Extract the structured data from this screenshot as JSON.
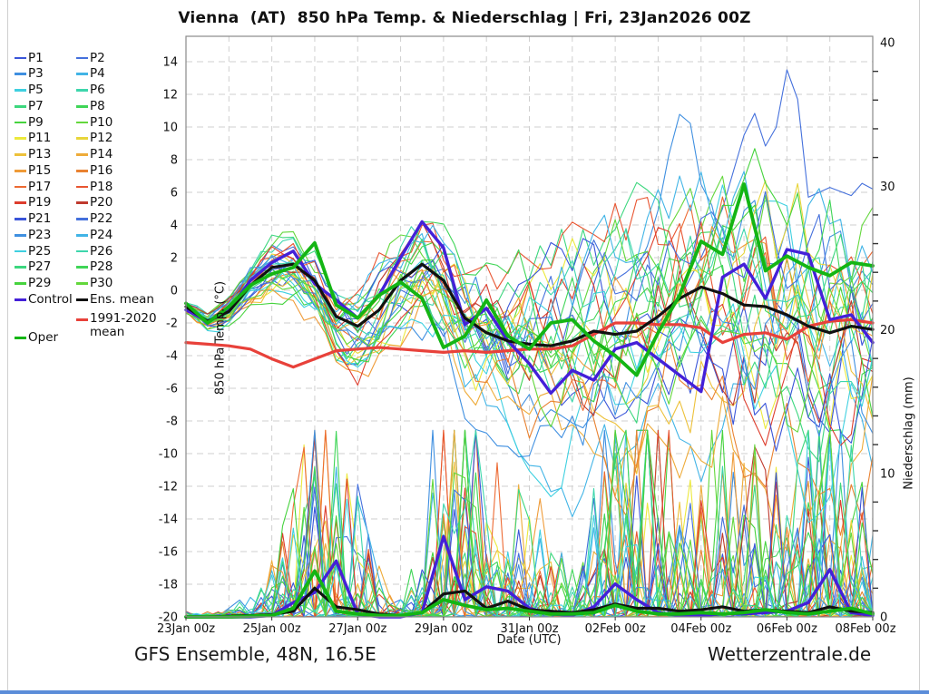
{
  "title": "Vienna  (AT)  850 hPa Temp. & Niederschlag | Fri, 23Jan2026 00Z",
  "footer": {
    "left": "GFS Ensemble, 48N, 16.5E",
    "right": "Wetterzentrale.de"
  },
  "axes": {
    "x_label": "Date (UTC)",
    "y_left_label": "850 hPa Temp. (°C)",
    "y_right_label": "Niederschlag (mm)",
    "x_tick_labels": [
      "23Jan 00z",
      "25Jan 00z",
      "27Jan 00z",
      "29Jan 00z",
      "31Jan 00z",
      "02Feb 00z",
      "04Feb 00z",
      "06Feb 00z",
      "08Feb 00z"
    ],
    "y_left_ticks": [
      14,
      12,
      10,
      8,
      6,
      4,
      2,
      0,
      -2,
      -4,
      -6,
      -8,
      -10,
      -12,
      -14,
      -16,
      -18,
      -20
    ],
    "y_right_ticks": [
      40,
      30,
      20,
      10,
      0
    ],
    "x_total_days": 16,
    "ylim_left": [
      -20,
      15.6
    ],
    "ylim_right": [
      0,
      40
    ]
  },
  "legend": {
    "member_labels": [
      "P1",
      "P2",
      "P3",
      "P4",
      "P5",
      "P6",
      "P7",
      "P8",
      "P9",
      "P10",
      "P11",
      "P12",
      "P13",
      "P14",
      "P15",
      "P16",
      "P17",
      "P18",
      "P19",
      "P20",
      "P21",
      "P22",
      "P23",
      "P24",
      "P25",
      "P26",
      "P27",
      "P28",
      "P29",
      "P30"
    ],
    "control_label": "Control",
    "mean_label": "Ens. mean",
    "climate_label": "1991-2020 mean",
    "oper_label": "Oper"
  },
  "chart_data": {
    "type": "line",
    "title": "Vienna (AT) 850 hPa Temp. & Niederschlag | Fri, 23Jan2026 00Z",
    "xlabel": "Date (UTC)",
    "ylabel_left": "850 hPa Temp. (°C)",
    "ylabel_right": "Niederschlag (mm)",
    "x_start_day": 0,
    "x_step_days": 0.5,
    "x_range_days": [
      0,
      16
    ],
    "grid": "dashed, every 1 day vertical, every 2 °C horizontal",
    "legend_position": "outside-left",
    "series": [
      {
        "name": "Ens. mean",
        "color": "#111111",
        "width": 3.2,
        "temp": [
          -1.0,
          -1.9,
          -1.3,
          0.3,
          1.4,
          1.6,
          0.6,
          -1.6,
          -2.2,
          -1.2,
          0.6,
          1.6,
          0.6,
          -1.7,
          -2.6,
          -3.1,
          -3.3,
          -3.4,
          -3.1,
          -2.5,
          -2.7,
          -2.5,
          -1.6,
          -0.5,
          0.2,
          -0.2,
          -0.9,
          -1.0,
          -1.5,
          -2.2,
          -2.6,
          -2.2,
          -2.4
        ],
        "precip": [
          0,
          0,
          0.05,
          0.1,
          0.15,
          0.4,
          2.0,
          0.7,
          0.5,
          0.2,
          0.1,
          0.3,
          1.6,
          1.8,
          0.6,
          1.1,
          0.5,
          0.4,
          0.3,
          0.5,
          0.9,
          0.6,
          0.6,
          0.4,
          0.5,
          0.7,
          0.4,
          0.5,
          0.4,
          0.3,
          0.7,
          0.4,
          0.3
        ]
      },
      {
        "name": "Control",
        "color": "#4420d8",
        "width": 3.4,
        "temp": [
          -1.2,
          -1.9,
          -1.2,
          0.6,
          1.7,
          2.4,
          0.4,
          -0.6,
          -1.7,
          -0.3,
          2.0,
          4.2,
          2.6,
          -2.1,
          -1.1,
          -3.1,
          -4.5,
          -6.3,
          -4.9,
          -5.5,
          -3.6,
          -3.2,
          -4.2,
          -5.2,
          -6.2,
          0.8,
          1.6,
          -0.5,
          2.5,
          2.2,
          -1.8,
          -1.5,
          -3.2
        ],
        "precip": [
          0,
          0,
          0,
          0,
          0.1,
          1.0,
          1.7,
          3.9,
          0.2,
          0,
          0,
          0.3,
          5.6,
          1.2,
          2.1,
          1.8,
          0.6,
          0.2,
          0.1,
          0.7,
          2.3,
          1.2,
          0.3,
          0.1,
          0.1,
          0.2,
          0.2,
          0.3,
          0.4,
          1.0,
          3.3,
          0.3,
          0.1
        ]
      },
      {
        "name": "Oper",
        "color": "#14b514",
        "width": 3.8,
        "temp": [
          -0.8,
          -2.0,
          -1.0,
          0.3,
          1.0,
          1.4,
          2.9,
          -0.9,
          -1.7,
          -0.3,
          0.5,
          -0.5,
          -3.5,
          -2.8,
          -0.6,
          -2.8,
          -3.6,
          -2.0,
          -1.8,
          -3.1,
          -4.0,
          -5.2,
          -2.6,
          -0.3,
          3.0,
          2.2,
          6.5,
          1.2,
          2.1,
          1.4,
          0.9,
          1.7,
          1.5
        ],
        "precip": [
          0,
          0,
          0,
          0.05,
          0.1,
          0.6,
          3.2,
          0.4,
          0.2,
          0.1,
          0.1,
          0.3,
          1.2,
          0.8,
          0.5,
          0.6,
          0.4,
          0.2,
          0.2,
          0.3,
          0.8,
          0.4,
          0.2,
          0.2,
          0.3,
          0.2,
          0.3,
          0.5,
          0.3,
          0.2,
          0.4,
          0.6,
          0.2
        ]
      },
      {
        "name": "1991-2020 mean",
        "color": "#e8413a",
        "width": 3.2,
        "temp": [
          -3.2,
          -3.3,
          -3.4,
          -3.6,
          -4.2,
          -4.7,
          -4.2,
          -3.7,
          -3.6,
          -3.5,
          -3.6,
          -3.7,
          -3.8,
          -3.7,
          -3.8,
          -3.7,
          -3.6,
          -3.6,
          -3.4,
          -2.7,
          -2.0,
          -2.0,
          -2.1,
          -2.1,
          -2.3,
          -3.2,
          -2.7,
          -2.6,
          -3.0,
          -2.2,
          -1.9,
          -1.8,
          -2.0
        ]
      }
    ],
    "members": {
      "count": 30,
      "colors": [
        "#3a55d9",
        "#4470dc",
        "#3f8fe0",
        "#41b4e6",
        "#3fd0e0",
        "#3ed6ac",
        "#3cd77e",
        "#3fd557",
        "#46d33e",
        "#63d73c",
        "#ece93c",
        "#e8d53a",
        "#edc13a",
        "#eeab39",
        "#ef9b38",
        "#e98231",
        "#ed6a33",
        "#e85531",
        "#dd3d2d",
        "#bf3a2e",
        "#3a55d9",
        "#4470dc",
        "#3f8fe0",
        "#41b4e6",
        "#3fd0e0",
        "#3ed6ac",
        "#3cd77e",
        "#3fd557",
        "#46d33e",
        "#63d73c"
      ],
      "start_temp": -1.0,
      "temp_spread_halfrange": [
        0.4,
        0.5,
        0.7,
        0.9,
        1.2,
        1.4,
        1.6,
        1.8,
        2.0,
        2.2,
        2.4,
        2.6,
        3.0,
        3.3,
        3.6,
        3.9,
        4.2,
        4.4,
        4.6,
        4.8,
        5.0,
        5.2,
        5.4,
        5.6,
        5.8,
        6.0,
        6.2,
        6.4,
        6.6,
        6.8,
        7.0,
        7.1,
        7.2
      ],
      "precip_activity_mm": [
        0.15,
        0.15,
        0.3,
        0.6,
        1.5,
        5,
        9,
        7,
        4,
        1.5,
        0.8,
        2,
        10,
        12,
        9,
        7,
        5,
        2.5,
        1.5,
        4,
        10,
        11,
        9,
        4,
        4,
        6,
        5,
        5,
        4,
        6,
        8,
        5,
        3
      ]
    },
    "warm_outlier": {
      "member": "P2",
      "points": [
        [
          11,
          -2.0
        ],
        [
          11.5,
          -0.5
        ],
        [
          12,
          2.0
        ],
        [
          12.5,
          5.0
        ],
        [
          13,
          9.5
        ],
        [
          13.3,
          11.1
        ],
        [
          13.6,
          7.7
        ],
        [
          14.1,
          15.3
        ],
        [
          14.5,
          5.7
        ],
        [
          15,
          6.3
        ],
        [
          15.5,
          5.8
        ],
        [
          15.8,
          6.7
        ],
        [
          16,
          6.2
        ]
      ]
    }
  },
  "colors": {
    "grid": "#cfcfcf",
    "frame": "#8a8a8a",
    "tick_text": "#111111",
    "control": "#4420d8",
    "ens_mean": "#111111",
    "oper": "#14b514",
    "climate_mean": "#e8413a"
  }
}
